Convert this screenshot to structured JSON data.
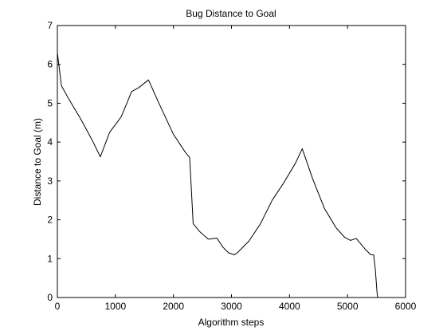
{
  "chart_data": {
    "type": "line",
    "title": "Bug Distance to Goal",
    "xlabel": "Algorithm steps",
    "ylabel": "Distance to Goal (m)",
    "xlim": [
      0,
      6000
    ],
    "ylim": [
      0,
      7
    ],
    "xticks": [
      0,
      1000,
      2000,
      3000,
      4000,
      5000,
      6000
    ],
    "yticks": [
      0,
      1,
      2,
      3,
      4,
      5,
      6,
      7
    ],
    "grid": false,
    "colors": {
      "line": "#000000",
      "axis": "#000000",
      "background": "#ffffff"
    },
    "series": [
      {
        "x": [
          0,
          70,
          200,
          400,
          600,
          740,
          900,
          1100,
          1280,
          1400,
          1570,
          1750,
          2000,
          2200,
          2280,
          2340,
          2450,
          2600,
          2750,
          2850,
          2950,
          3050,
          3100,
          3300,
          3500,
          3700,
          3900,
          4100,
          4220,
          4400,
          4600,
          4800,
          4950,
          5050,
          5150,
          5300,
          5400,
          5450,
          5480,
          5500,
          5510,
          5520
        ],
        "y": [
          6.3,
          5.45,
          5.1,
          4.6,
          4.05,
          3.62,
          4.25,
          4.65,
          5.3,
          5.4,
          5.6,
          5.0,
          4.2,
          3.75,
          3.6,
          1.9,
          1.7,
          1.5,
          1.53,
          1.3,
          1.15,
          1.1,
          1.15,
          1.45,
          1.9,
          2.5,
          2.95,
          3.45,
          3.83,
          3.05,
          2.3,
          1.8,
          1.55,
          1.47,
          1.52,
          1.25,
          1.1,
          1.1,
          0.7,
          0.3,
          0.1,
          0.0
        ]
      }
    ]
  }
}
